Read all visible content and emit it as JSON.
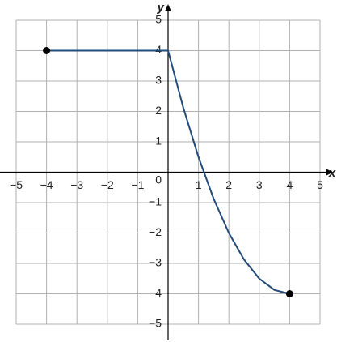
{
  "chart_data": {
    "type": "line",
    "x_label": "x",
    "y_label": "y",
    "xlim": [
      -5,
      5
    ],
    "ylim": [
      -5,
      5
    ],
    "xticks": [
      {
        "value": -5,
        "label": "−5"
      },
      {
        "value": -4,
        "label": "−4"
      },
      {
        "value": -3,
        "label": "−3"
      },
      {
        "value": -2,
        "label": "−2"
      },
      {
        "value": -1,
        "label": "−1"
      },
      1,
      2,
      3,
      4,
      5
    ],
    "yticks": [
      {
        "value": -5,
        "label": "−5"
      },
      {
        "value": -4,
        "label": "−4"
      },
      {
        "value": -3,
        "label": "−3"
      },
      {
        "value": -2,
        "label": "−2"
      },
      {
        "value": -1,
        "label": "−1"
      },
      1,
      2,
      3,
      4,
      5
    ],
    "origin_label": "0",
    "grid": true,
    "series": [
      {
        "color": "#234b78",
        "x": [
          -4,
          -3,
          -2,
          -1,
          0,
          0.5,
          1,
          1.5,
          2,
          2.5,
          3,
          3.5,
          4
        ],
        "values": [
          4,
          4,
          4,
          4,
          4,
          2.125,
          0.5,
          -0.875,
          -2,
          -2.875,
          -3.5,
          -3.875,
          -4
        ]
      }
    ],
    "endpoints": {
      "x": [
        -4,
        4
      ],
      "y": [
        4,
        -4
      ],
      "color": "#000000"
    }
  }
}
